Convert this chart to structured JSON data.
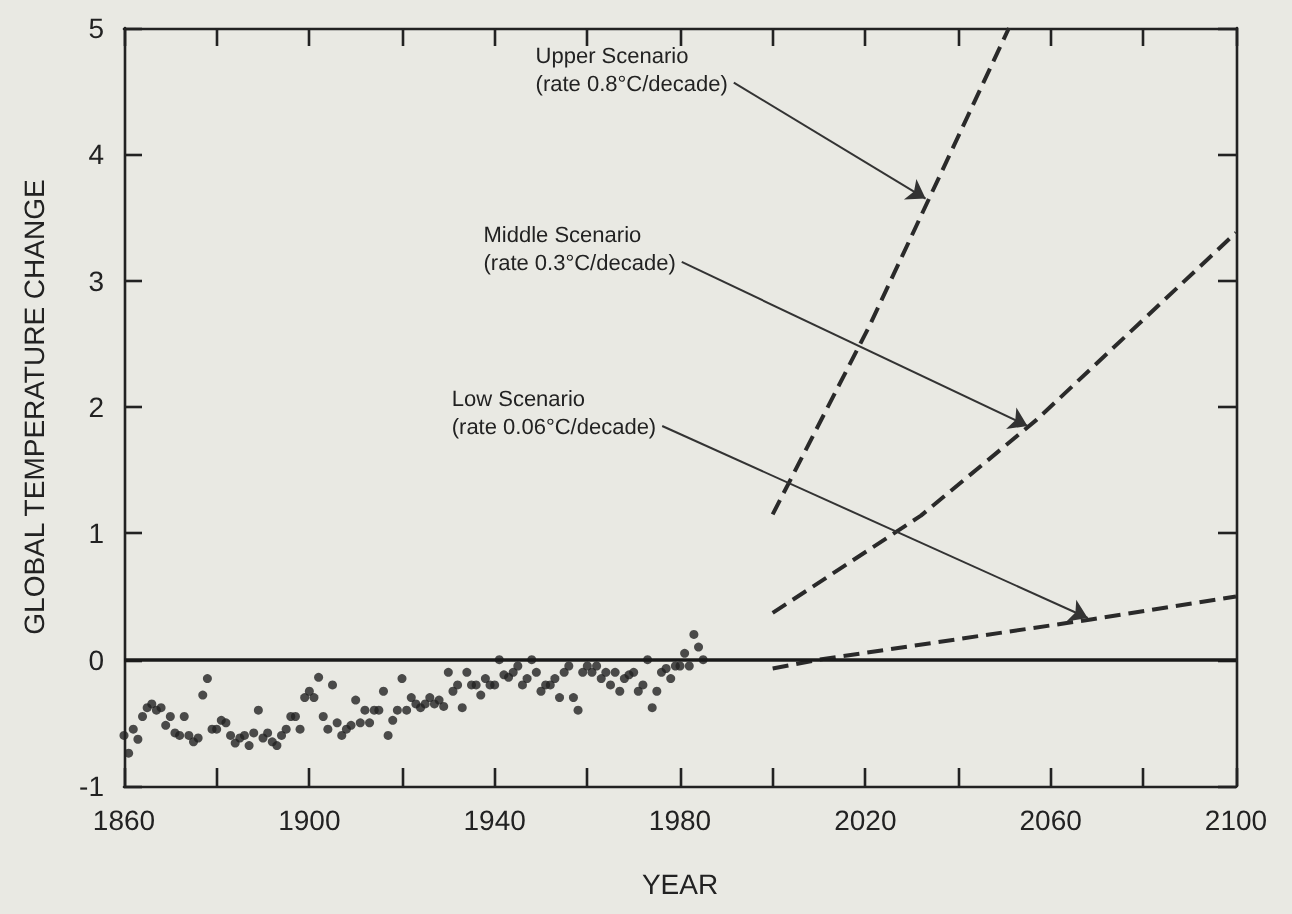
{
  "chart_data": {
    "type": "scatter",
    "xlabel": "YEAR",
    "ylabel": "GLOBAL TEMPERATURE CHANGE",
    "xlim": [
      1860,
      2100
    ],
    "ylim": [
      -1,
      5
    ],
    "xticks": [
      1860,
      {
        "value": 1880,
        "label": null
      },
      1900,
      {
        "value": 1920,
        "label": null
      },
      1940,
      {
        "value": 1960,
        "label": null
      },
      1980,
      {
        "value": 2000,
        "label": null
      },
      2020,
      {
        "value": 2040,
        "label": null
      },
      2060,
      {
        "value": 2080,
        "label": null
      },
      2100
    ],
    "yticks": [
      -1,
      0,
      1,
      2,
      3,
      4,
      5
    ],
    "grid": false,
    "ref_lines": [
      {
        "axis": "y",
        "value": 0,
        "color": "#1a1a1a",
        "line_style": "solid"
      }
    ],
    "annotations": [
      {
        "text": "Upper Scenario\n(rate 0.8°C/decade)",
        "x": 2033,
        "y": 3.65
      },
      {
        "text": "Middle Scenario\n(rate 0.3°C/decade)",
        "x": 2055,
        "y": 1.85
      },
      {
        "text": "Low Scenario\n(rate 0.06°C/decade)",
        "x": 2068,
        "y": 0.33
      }
    ],
    "series": [
      {
        "marker": "circle",
        "color": "#222222",
        "x": [
          1860,
          1861,
          1862,
          1863,
          1864,
          1865,
          1866,
          1867,
          1868,
          1869,
          1870,
          1871,
          1872,
          1873,
          1874,
          1875,
          1876,
          1877,
          1878,
          1879,
          1880,
          1881,
          1882,
          1883,
          1884,
          1885,
          1886,
          1887,
          1888,
          1889,
          1890,
          1891,
          1892,
          1893,
          1894,
          1895,
          1896,
          1897,
          1898,
          1899,
          1900,
          1901,
          1902,
          1903,
          1904,
          1905,
          1906,
          1907,
          1908,
          1909,
          1910,
          1911,
          1912,
          1913,
          1914,
          1915,
          1916,
          1917,
          1918,
          1919,
          1920,
          1921,
          1922,
          1923,
          1924,
          1925,
          1926,
          1927,
          1928,
          1929,
          1930,
          1931,
          1932,
          1933,
          1934,
          1935,
          1936,
          1937,
          1938,
          1939,
          1940,
          1941,
          1942,
          1943,
          1944,
          1945,
          1946,
          1947,
          1948,
          1949,
          1950,
          1951,
          1952,
          1953,
          1954,
          1955,
          1956,
          1957,
          1958,
          1959,
          1960,
          1961,
          1962,
          1963,
          1964,
          1965,
          1966,
          1967,
          1968,
          1969,
          1970,
          1971,
          1972,
          1973,
          1974,
          1975,
          1976,
          1977,
          1978,
          1979,
          1980,
          1981,
          1982,
          1983,
          1984,
          1985
        ],
        "values": [
          -0.6,
          -0.74,
          -0.55,
          -0.63,
          -0.45,
          -0.38,
          -0.35,
          -0.4,
          -0.38,
          -0.52,
          -0.45,
          -0.58,
          -0.6,
          -0.45,
          -0.6,
          -0.65,
          -0.62,
          -0.28,
          -0.15,
          -0.55,
          -0.55,
          -0.48,
          -0.5,
          -0.6,
          -0.66,
          -0.62,
          -0.6,
          -0.68,
          -0.58,
          -0.4,
          -0.62,
          -0.58,
          -0.65,
          -0.68,
          -0.6,
          -0.55,
          -0.45,
          -0.45,
          -0.55,
          -0.3,
          -0.25,
          -0.3,
          -0.14,
          -0.45,
          -0.55,
          -0.2,
          -0.5,
          -0.6,
          -0.55,
          -0.52,
          -0.32,
          -0.5,
          -0.4,
          -0.5,
          -0.4,
          -0.4,
          -0.25,
          -0.6,
          -0.48,
          -0.4,
          -0.15,
          -0.4,
          -0.3,
          -0.35,
          -0.38,
          -0.35,
          -0.3,
          -0.35,
          -0.32,
          -0.37,
          -0.1,
          -0.25,
          -0.2,
          -0.38,
          -0.1,
          -0.2,
          -0.2,
          -0.28,
          -0.15,
          -0.2,
          -0.2,
          0,
          -0.12,
          -0.14,
          -0.1,
          -0.05,
          -0.2,
          -0.15,
          0,
          -0.1,
          -0.25,
          -0.2,
          -0.2,
          -0.15,
          -0.3,
          -0.1,
          -0.05,
          -0.3,
          -0.4,
          -0.1,
          -0.05,
          -0.1,
          -0.05,
          -0.15,
          -0.1,
          -0.2,
          -0.1,
          -0.25,
          -0.15,
          -0.12,
          -0.1,
          -0.25,
          -0.2,
          0,
          -0.38,
          -0.25,
          -0.1,
          -0.07,
          -0.15,
          -0.05,
          -0.05,
          0.05,
          -0.05,
          0.2,
          0.1,
          0
        ]
      },
      {
        "type": "line",
        "marker": "none",
        "line_style": "dashed",
        "color": "#2a2a2a",
        "x": [
          2000,
          2021,
          2051
        ],
        "values": [
          1.15,
          2.65,
          5
        ]
      },
      {
        "type": "line",
        "marker": "none",
        "line_style": "dashed",
        "color": "#2a2a2a",
        "x": [
          2000,
          2032,
          2057,
          2100
        ],
        "values": [
          0.37,
          1.14,
          1.9,
          3.38
        ]
      },
      {
        "type": "line",
        "marker": "none",
        "line_style": "dashed",
        "color": "#2a2a2a",
        "x": [
          2000,
          2010,
          2069,
          2100
        ],
        "values": [
          -0.07,
          0,
          0.32,
          0.5
        ]
      }
    ]
  }
}
